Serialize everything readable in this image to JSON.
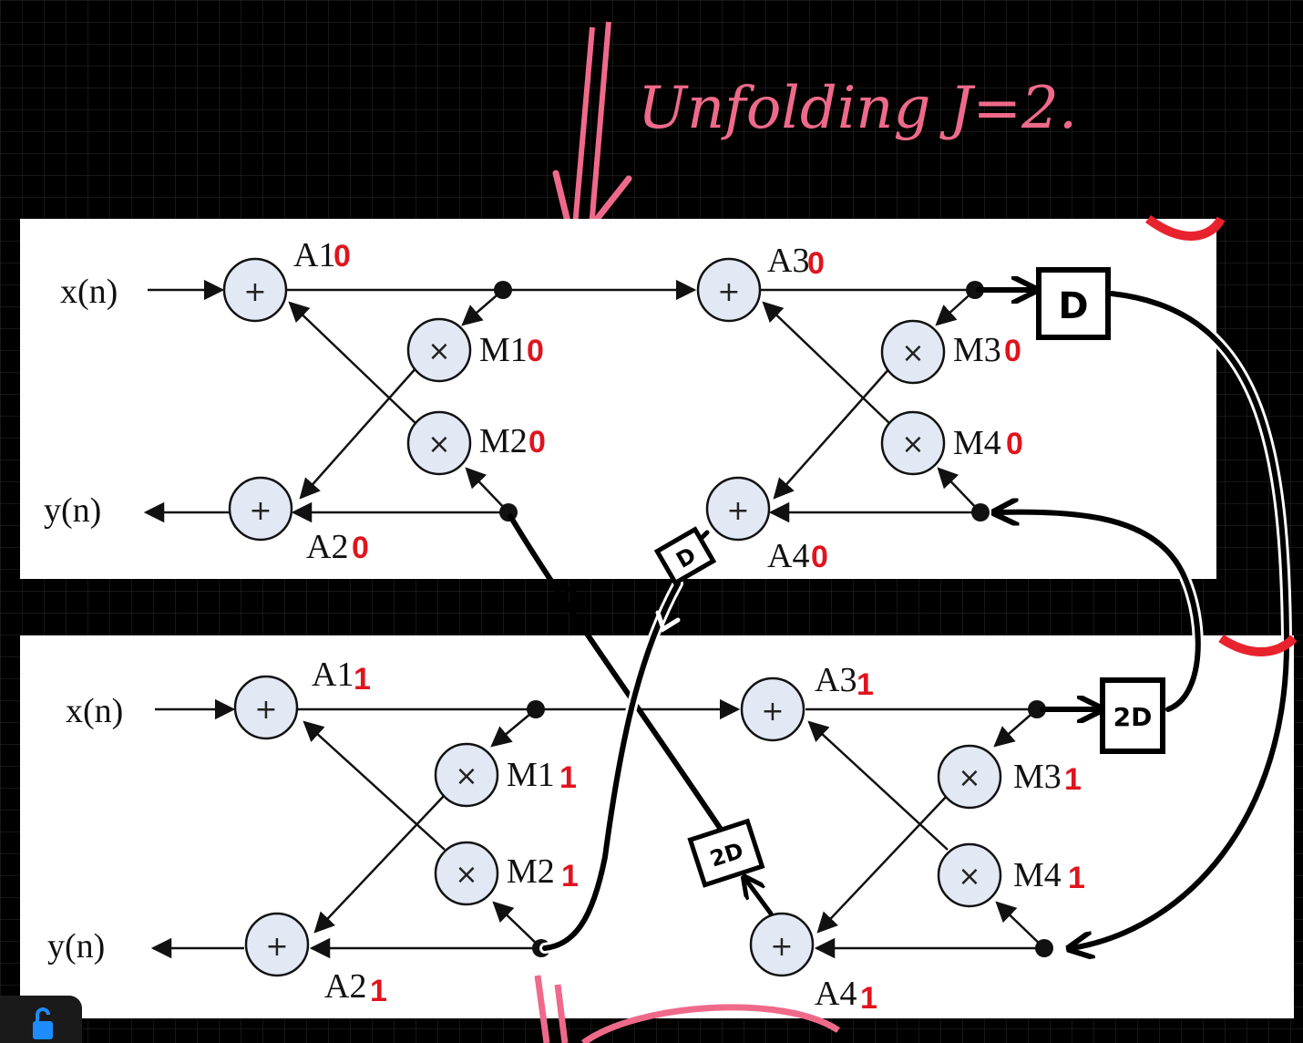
{
  "annotation": {
    "title": "Unfolding J=2."
  },
  "diagram_top": {
    "input": "x(n)",
    "output": "y(n)",
    "nodes": {
      "a1": {
        "name": "A1",
        "sub": "0"
      },
      "a2": {
        "name": "A2",
        "sub": "0"
      },
      "a3": {
        "name": "A3",
        "sub": "0"
      },
      "a4": {
        "name": "A4",
        "sub": "0"
      },
      "m1": {
        "name": "M1",
        "sub": "0"
      },
      "m2": {
        "name": "M2",
        "sub": "0"
      },
      "m3": {
        "name": "M3",
        "sub": "0"
      },
      "m4": {
        "name": "M4",
        "sub": "0"
      }
    }
  },
  "diagram_bottom": {
    "input": "x(n)",
    "output": "y(n)",
    "nodes": {
      "a1": {
        "name": "A1",
        "sub": "1"
      },
      "a2": {
        "name": "A2",
        "sub": "1"
      },
      "a3": {
        "name": "A3",
        "sub": "1"
      },
      "a4": {
        "name": "A4",
        "sub": "1"
      },
      "m1": {
        "name": "M1",
        "sub": "1"
      },
      "m2": {
        "name": "M2",
        "sub": "1"
      },
      "m3": {
        "name": "M3",
        "sub": "1"
      },
      "m4": {
        "name": "M4",
        "sub": "1"
      }
    }
  },
  "symbols": {
    "add": "+",
    "mul": "×"
  },
  "delays": {
    "d_top": "D",
    "d_mid": "D",
    "d2_right": "2D",
    "d2_mid": "2D"
  }
}
